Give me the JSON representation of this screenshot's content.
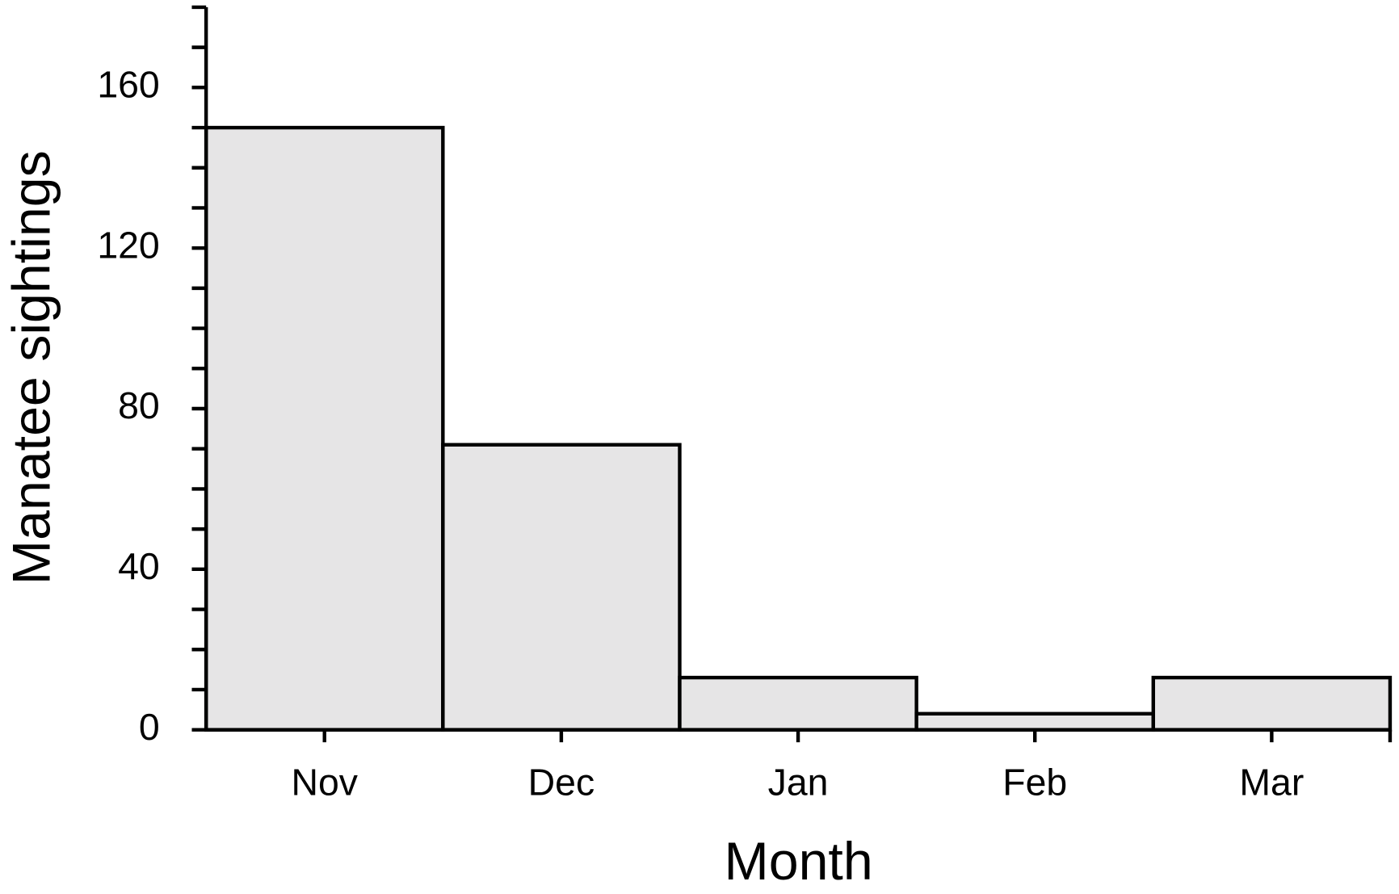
{
  "chart_data": {
    "type": "bar",
    "x_label": "Month",
    "y_label": "Manatee sightings",
    "categories": [
      "Nov",
      "Dec",
      "Jan",
      "Feb",
      "Mar"
    ],
    "values": [
      150,
      71,
      13,
      4,
      13
    ],
    "color": "#e6e5e6",
    "edge_color": "#000000",
    "ylim": [
      0,
      180
    ],
    "yticks": [
      0,
      40,
      80,
      120,
      160
    ],
    "minor_yticks": [
      10,
      20,
      30,
      50,
      60,
      70,
      90,
      100,
      110,
      130,
      140,
      150,
      170,
      180
    ]
  }
}
